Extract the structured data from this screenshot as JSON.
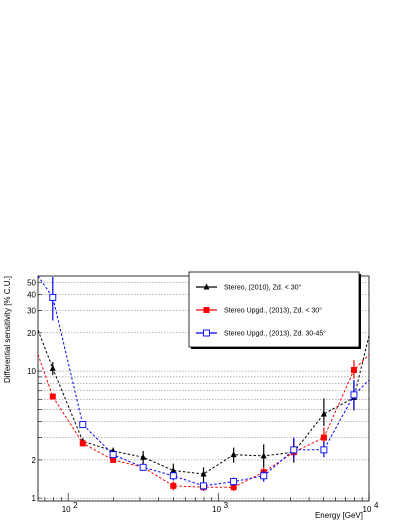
{
  "chart_data": {
    "type": "line",
    "title": "",
    "xlabel": "Energy [GeV]",
    "ylabel": "Differential sensitivity [% C.U.]",
    "x_scale": "log",
    "y_scale": "log",
    "xlim": [
      63,
      10000
    ],
    "ylim": [
      0.95,
      56
    ],
    "grid": {
      "x": false,
      "y": true
    },
    "legend_position": "top-right",
    "x_tick_labels": [
      {
        "value": 100,
        "mantissa": "10",
        "exponent": "2"
      },
      {
        "value": 1000,
        "mantissa": "10",
        "exponent": "3"
      },
      {
        "value": 10000,
        "mantissa": "10",
        "exponent": "4"
      }
    ],
    "y_tick_labels": [
      {
        "value": 1,
        "label": "1"
      },
      {
        "value": 2,
        "label": "2"
      },
      {
        "value": 10,
        "label": "10"
      },
      {
        "value": 20,
        "label": "20"
      },
      {
        "value": 30,
        "label": "30"
      },
      {
        "value": 40,
        "label": "40"
      },
      {
        "value": 50,
        "label": "50"
      }
    ],
    "series": [
      {
        "name": "Stereo, (2010), Zd. < 30°",
        "color": "#000000",
        "marker": "triangle",
        "x": [
          79,
          125,
          199,
          315,
          500,
          794,
          1259,
          1995,
          3162,
          5012,
          7943
        ],
        "y": [
          10.5,
          2.8,
          2.35,
          2.1,
          1.65,
          1.55,
          2.2,
          2.15,
          2.3,
          4.6,
          6.2
        ],
        "err_low": [
          1.2,
          0.15,
          0.15,
          0.25,
          0.22,
          0.2,
          0.3,
          0.4,
          0.4,
          0.9,
          1.3
        ],
        "err_high": [
          1.3,
          0.15,
          0.15,
          0.25,
          0.22,
          0.2,
          0.3,
          0.5,
          0.6,
          1.5,
          2.0
        ],
        "curve_start": [
          63,
          21
        ],
        "curve_end": [
          10000,
          19
        ]
      },
      {
        "name": "Stereo Upgd., (2013), Zd. < 30°",
        "color": "#ff0000",
        "marker": "square",
        "x": [
          79,
          125,
          199,
          315,
          500,
          794,
          1259,
          1995,
          3162,
          5012,
          7943
        ],
        "y": [
          6.3,
          2.7,
          2.0,
          1.75,
          1.25,
          1.22,
          1.22,
          1.6,
          2.3,
          3.0,
          10.2
        ],
        "err_low": [
          0.3,
          0.1,
          0.07,
          0.1,
          0.1,
          0.08,
          0.08,
          0.15,
          0.3,
          0.5,
          1.5
        ],
        "err_high": [
          0.3,
          0.1,
          0.07,
          0.1,
          0.1,
          0.08,
          0.08,
          0.15,
          0.4,
          0.6,
          2.0
        ],
        "curve_start": [
          63,
          13.5
        ],
        "curve_end": [
          10000,
          13.5
        ]
      },
      {
        "name": "Stereo Upgd., (2013), Zd. 30-45°",
        "color": "#0000ff",
        "marker": "open-square",
        "x": [
          79,
          125,
          199,
          315,
          500,
          794,
          1259,
          1995,
          3162,
          5012,
          7943
        ],
        "y": [
          38,
          3.8,
          2.2,
          1.75,
          1.5,
          1.25,
          1.35,
          1.5,
          2.4,
          2.4,
          6.5
        ],
        "err_low": [
          13,
          0.2,
          0.1,
          0.1,
          0.12,
          0.1,
          0.1,
          0.15,
          0.4,
          0.3,
          1.5
        ],
        "err_high": [
          17,
          0.2,
          0.1,
          0.1,
          0.12,
          0.1,
          0.1,
          0.15,
          0.6,
          0.4,
          2.0
        ],
        "curve_start": [
          63,
          56
        ],
        "curve_end": [
          10000,
          8.5
        ]
      }
    ]
  }
}
